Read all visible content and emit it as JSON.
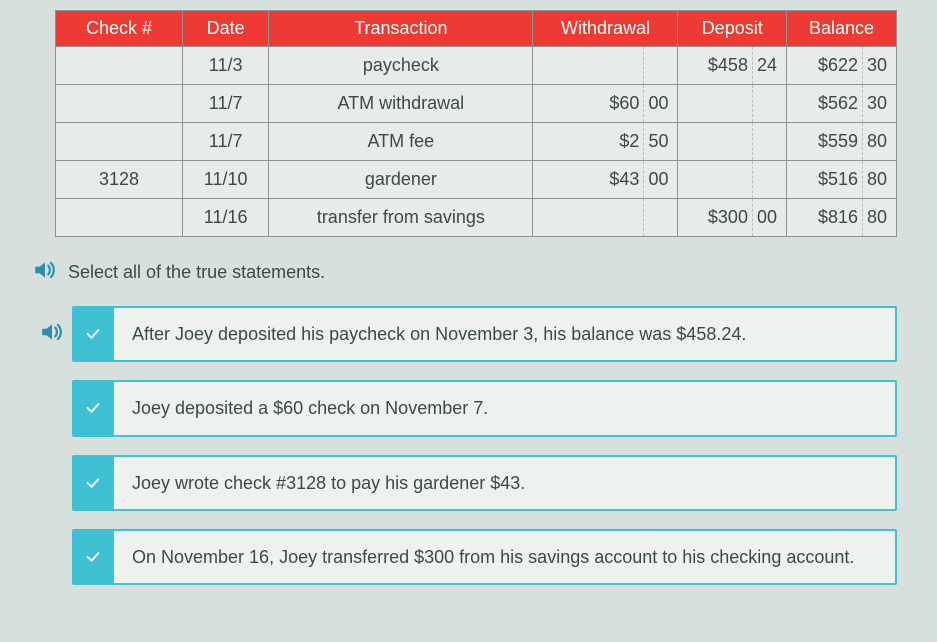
{
  "table": {
    "headers": [
      "Check #",
      "Date",
      "Transaction",
      "Withdrawal",
      "Deposit",
      "Balance"
    ],
    "rows": [
      {
        "check": "",
        "date": "11/3",
        "transaction": "paycheck",
        "withdrawal_d": "",
        "withdrawal_c": "",
        "deposit_d": "$458",
        "deposit_c": "24",
        "balance_d": "$622",
        "balance_c": "30"
      },
      {
        "check": "",
        "date": "11/7",
        "transaction": "ATM withdrawal",
        "withdrawal_d": "$60",
        "withdrawal_c": "00",
        "deposit_d": "",
        "deposit_c": "",
        "balance_d": "$562",
        "balance_c": "30"
      },
      {
        "check": "",
        "date": "11/7",
        "transaction": "ATM fee",
        "withdrawal_d": "$2",
        "withdrawal_c": "50",
        "deposit_d": "",
        "deposit_c": "",
        "balance_d": "$559",
        "balance_c": "80"
      },
      {
        "check": "3128",
        "date": "11/10",
        "transaction": "gardener",
        "withdrawal_d": "$43",
        "withdrawal_c": "00",
        "deposit_d": "",
        "deposit_c": "",
        "balance_d": "$516",
        "balance_c": "80"
      },
      {
        "check": "",
        "date": "11/16",
        "transaction": "transfer from savings",
        "withdrawal_d": "",
        "withdrawal_c": "",
        "deposit_d": "$300",
        "deposit_c": "00",
        "balance_d": "$816",
        "balance_c": "80"
      }
    ],
    "header_bg": "#ee3a32",
    "header_fg": "#ffffff",
    "cell_bg": "#e8ece9",
    "border_color": "#8a9494"
  },
  "prompt": "Select all of the true statements.",
  "options": [
    {
      "text": "After Joey deposited his paycheck on November 3, his balance was $458.24.",
      "has_speaker": true
    },
    {
      "text": "Joey deposited a $60 check on November 7.",
      "has_speaker": false
    },
    {
      "text": "Joey wrote check #3128 to pay his gardener $43.",
      "has_speaker": false
    },
    {
      "text": "On November 16, Joey transferred $300 from his savings account to his checking account.",
      "has_speaker": false
    }
  ],
  "colors": {
    "page_bg": "#d8e0dd",
    "accent": "#3ec1d3",
    "option_bg": "#eef2ef",
    "text": "#3a4a4a",
    "speaker": "#2a8fa8"
  }
}
